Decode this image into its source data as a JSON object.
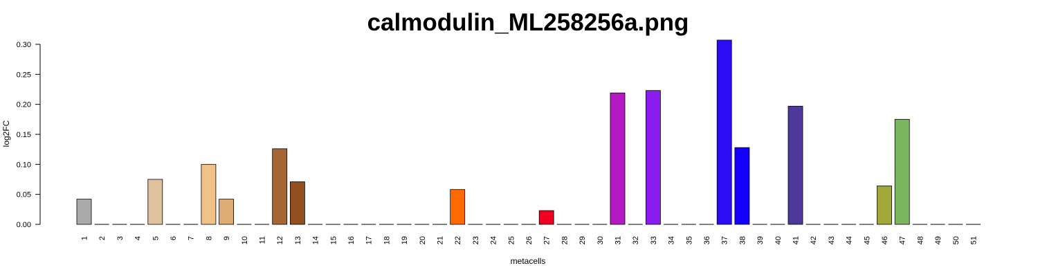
{
  "chart_data": {
    "type": "bar",
    "title": "calmodulin_ML258256a.png",
    "xlabel": "metacells",
    "ylabel": "log2FC",
    "ylim": [
      0,
      0.3
    ],
    "yticks": [
      "0.00",
      "0.05",
      "0.10",
      "0.15",
      "0.20",
      "0.25",
      "0.30"
    ],
    "grid": false,
    "legend": "none",
    "categories": [
      "1",
      "2",
      "3",
      "4",
      "5",
      "6",
      "7",
      "8",
      "9",
      "10",
      "11",
      "12",
      "13",
      "14",
      "15",
      "16",
      "17",
      "18",
      "19",
      "20",
      "21",
      "22",
      "23",
      "24",
      "25",
      "26",
      "27",
      "28",
      "29",
      "30",
      "31",
      "32",
      "33",
      "34",
      "35",
      "36",
      "37",
      "38",
      "39",
      "40",
      "41",
      "42",
      "43",
      "44",
      "45",
      "46",
      "47",
      "48",
      "49",
      "50",
      "51"
    ],
    "values": [
      0.042,
      0,
      0,
      0,
      0.075,
      0,
      0,
      0.1,
      0.042,
      0,
      0,
      0.126,
      0.071,
      0,
      0,
      0,
      0,
      0,
      0,
      0,
      0,
      0.058,
      0,
      0,
      0,
      0,
      0.023,
      0,
      0,
      0,
      0.219,
      0,
      0.223,
      0,
      0,
      0,
      0.307,
      0.128,
      0,
      0,
      0.197,
      0,
      0,
      0,
      0,
      0.064,
      0.175,
      0,
      0,
      0,
      0
    ],
    "colors": [
      "#aaaaaa",
      "#aaaaaa",
      "#aaaaaa",
      "#aaaaaa",
      "#dfc19e",
      "#dfc19e",
      "#dfc19e",
      "#f0c28a",
      "#dfab74",
      "#a0a0a0",
      "#a0a0a0",
      "#a56535",
      "#925020",
      "#925020",
      "#925020",
      "#925020",
      "#925020",
      "#925020",
      "#925020",
      "#925020",
      "#925020",
      "#ff6a00",
      "#ff6a00",
      "#ff6a00",
      "#ff6a00",
      "#ff6a00",
      "#f00020",
      "#f00020",
      "#f00020",
      "#f00020",
      "#b41ac4",
      "#b41ac4",
      "#8a1cf0",
      "#8a1cf0",
      "#8a1cf0",
      "#8a1cf0",
      "#2a0cf5",
      "#1300ff",
      "#1300ff",
      "#1300ff",
      "#4f389c",
      "#4f389c",
      "#4f389c",
      "#4f389c",
      "#4f389c",
      "#a2a838",
      "#7bb65e",
      "#7bb65e",
      "#7bb65e",
      "#7bb65e",
      "#7bb65e"
    ]
  }
}
